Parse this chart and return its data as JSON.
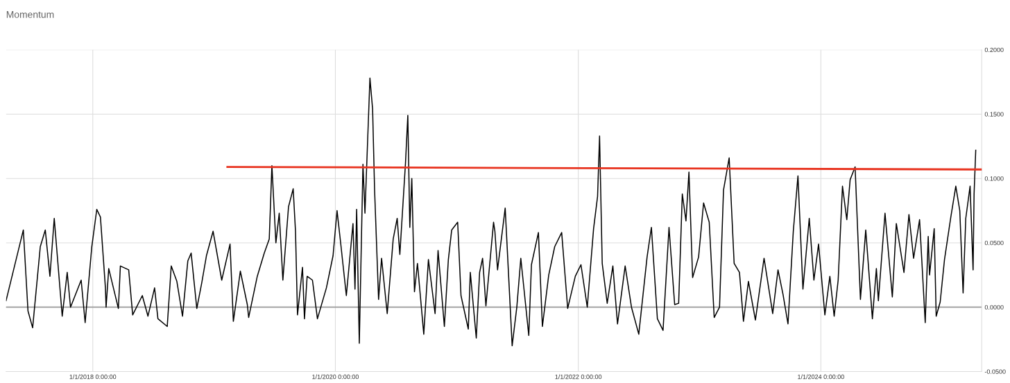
{
  "chart_data": {
    "type": "line",
    "title": "Momentum",
    "xlim": [
      "2017-04-15",
      "2025-04-29"
    ],
    "xticks": [
      {
        "value": "2018-01-01",
        "label": "1/1/2018 0:00:00"
      },
      {
        "value": "2020-01-01",
        "label": "1/1/2020 0:00:00"
      },
      {
        "value": "2022-01-01",
        "label": "1/1/2022 0:00:00"
      },
      {
        "value": "2024-01-01",
        "label": "1/1/2024 0:00:00"
      }
    ],
    "ylim": [
      -0.05,
      0.2
    ],
    "yticks": [
      {
        "value": -0.05,
        "label": "-0.0500"
      },
      {
        "value": 0,
        "label": "0.0000"
      },
      {
        "value": 0.05,
        "label": "0.0500"
      },
      {
        "value": 0.1,
        "label": "0.1000"
      },
      {
        "value": 0.15,
        "label": "0.1500"
      },
      {
        "value": 0.2,
        "label": "0.2000"
      }
    ],
    "grid": true,
    "marker": "none",
    "line_style": "solid",
    "ref_lines": [
      {
        "axis": "y",
        "value": 0,
        "color": "#999999"
      }
    ],
    "series": [
      {
        "color": "#000000",
        "x": [
          "2017-04-15",
          "2017-06-06",
          "2017-06-20",
          "2017-07-04",
          "2017-07-27",
          "2017-08-11",
          "2017-08-25",
          "2017-09-07",
          "2017-10-01",
          "2017-10-16",
          "2017-10-26",
          "2017-11-27",
          "2017-12-09",
          "2017-12-29",
          "2018-01-13",
          "2018-01-24",
          "2018-02-08",
          "2018-02-10",
          "2018-02-18",
          "2018-03-19",
          "2018-03-25",
          "2018-04-19",
          "2018-05-01",
          "2018-05-30",
          "2018-06-16",
          "2018-07-06",
          "2018-07-16",
          "2018-08-13",
          "2018-08-25",
          "2018-09-11",
          "2018-09-28",
          "2018-10-14",
          "2018-10-24",
          "2018-11-10",
          "2018-11-25",
          "2018-12-09",
          "2018-12-29",
          "2019-01-24",
          "2019-02-18",
          "2019-02-28",
          "2019-03-21",
          "2019-04-11",
          "2019-04-15",
          "2019-05-11",
          "2019-06-01",
          "2019-06-16",
          "2019-06-24",
          "2019-07-06",
          "2019-07-16",
          "2019-07-27",
          "2019-08-13",
          "2019-08-27",
          "2019-09-03",
          "2019-09-09",
          "2019-09-24",
          "2019-09-30",
          "2019-10-08",
          "2019-10-24",
          "2019-11-08",
          "2019-12-05",
          "2019-12-25",
          "2020-01-06",
          "2020-01-16",
          "2020-02-03",
          "2020-02-23",
          "2020-02-29",
          "2020-03-05",
          "2020-03-13",
          "2020-03-24",
          "2020-03-30",
          "2020-04-14",
          "2020-04-22",
          "2020-04-28",
          "2020-05-10",
          "2020-05-19",
          "2020-06-05",
          "2020-06-23",
          "2020-07-05",
          "2020-07-13",
          "2020-07-30",
          "2020-08-06",
          "2020-08-12",
          "2020-08-18",
          "2020-08-26",
          "2020-09-04",
          "2020-09-23",
          "2020-10-07",
          "2020-10-27",
          "2020-11-05",
          "2020-11-24",
          "2020-12-06",
          "2020-12-16",
          "2021-01-03",
          "2021-01-13",
          "2021-02-04",
          "2021-02-10",
          "2021-02-28",
          "2021-03-10",
          "2021-03-19",
          "2021-03-29",
          "2021-04-21",
          "2021-04-25",
          "2021-05-03",
          "2021-05-26",
          "2021-06-16",
          "2021-06-30",
          "2021-07-12",
          "2021-08-05",
          "2021-08-13",
          "2021-09-03",
          "2021-09-15",
          "2021-10-04",
          "2021-10-22",
          "2021-11-12",
          "2021-11-30",
          "2021-12-23",
          "2022-01-09",
          "2022-01-28",
          "2022-02-16",
          "2022-02-28",
          "2022-03-06",
          "2022-03-14",
          "2022-03-29",
          "2022-04-15",
          "2022-04-29",
          "2022-05-22",
          "2022-06-10",
          "2022-07-02",
          "2022-07-27",
          "2022-08-09",
          "2022-08-27",
          "2022-09-13",
          "2022-10-01",
          "2022-10-18",
          "2022-10-30",
          "2022-11-10",
          "2022-11-21",
          "2022-11-30",
          "2022-12-11",
          "2022-12-29",
          "2023-01-13",
          "2023-01-30",
          "2023-02-14",
          "2023-03-02",
          "2023-03-14",
          "2023-03-31",
          "2023-04-15",
          "2023-05-01",
          "2023-05-13",
          "2023-05-28",
          "2023-06-18",
          "2023-07-14",
          "2023-08-09",
          "2023-08-25",
          "2023-09-09",
          "2023-09-24",
          "2023-10-10",
          "2023-10-24",
          "2023-11-08",
          "2023-11-27",
          "2023-12-11",
          "2023-12-25",
          "2024-01-13",
          "2024-01-28",
          "2024-02-10",
          "2024-02-22",
          "2024-03-06",
          "2024-03-19",
          "2024-03-29",
          "2024-04-13",
          "2024-04-29",
          "2024-05-15",
          "2024-06-04",
          "2024-06-16",
          "2024-06-22",
          "2024-07-12",
          "2024-08-03",
          "2024-08-15",
          "2024-09-07",
          "2024-09-22",
          "2024-10-06",
          "2024-10-24",
          "2024-11-10",
          "2024-11-19",
          "2024-11-23",
          "2024-12-07",
          "2024-12-13",
          "2024-12-25",
          "2025-01-07",
          "2025-01-26",
          "2025-02-10",
          "2025-02-22",
          "2025-03-04",
          "2025-03-12",
          "2025-03-25",
          "2025-04-03",
          "2025-04-06",
          "2025-04-11"
        ],
        "values": [
          0.005,
          0.06,
          -0.003,
          -0.016,
          0.047,
          0.06,
          0.024,
          0.069,
          -0.007,
          0.027,
          0.0,
          0.021,
          -0.012,
          0.047,
          0.076,
          0.07,
          0.015,
          0.0,
          0.03,
          -0.001,
          0.032,
          0.029,
          -0.006,
          0.009,
          -0.007,
          0.015,
          -0.009,
          -0.015,
          0.032,
          0.02,
          -0.007,
          0.036,
          0.042,
          -0.001,
          0.019,
          0.04,
          0.059,
          0.021,
          0.049,
          -0.011,
          0.028,
          0.002,
          -0.008,
          0.024,
          0.042,
          0.053,
          0.11,
          0.05,
          0.073,
          0.021,
          0.078,
          0.092,
          0.059,
          -0.006,
          0.031,
          -0.009,
          0.024,
          0.021,
          -0.009,
          0.015,
          0.04,
          0.075,
          0.052,
          0.009,
          0.065,
          0.014,
          0.076,
          -0.028,
          0.111,
          0.073,
          0.178,
          0.154,
          0.091,
          0.006,
          0.038,
          -0.005,
          0.053,
          0.069,
          0.041,
          0.112,
          0.149,
          0.062,
          0.1,
          0.012,
          0.034,
          -0.021,
          0.037,
          -0.005,
          0.044,
          -0.015,
          0.037,
          0.06,
          0.066,
          0.009,
          -0.017,
          0.027,
          -0.024,
          0.027,
          0.038,
          0.001,
          0.066,
          0.059,
          0.029,
          0.077,
          -0.03,
          0.0,
          0.038,
          -0.022,
          0.033,
          0.058,
          -0.015,
          0.025,
          0.047,
          0.058,
          -0.001,
          0.024,
          0.033,
          0.0,
          0.061,
          0.086,
          0.133,
          0.034,
          0.003,
          0.032,
          -0.013,
          0.032,
          0.0,
          -0.021,
          0.039,
          0.062,
          -0.009,
          -0.018,
          0.062,
          0.002,
          0.003,
          0.088,
          0.067,
          0.105,
          0.023,
          0.039,
          0.081,
          0.066,
          -0.008,
          0.0,
          0.091,
          0.116,
          0.034,
          0.027,
          -0.011,
          0.02,
          -0.01,
          0.038,
          -0.005,
          0.029,
          0.01,
          -0.013,
          0.059,
          0.102,
          0.014,
          0.069,
          0.021,
          0.049,
          -0.006,
          0.024,
          -0.007,
          0.021,
          0.094,
          0.068,
          0.099,
          0.109,
          0.006,
          0.06,
          -0.009,
          0.03,
          0.005,
          0.073,
          0.008,
          0.065,
          0.027,
          0.072,
          0.038,
          0.068,
          -0.012,
          0.055,
          0.025,
          0.061,
          -0.007,
          0.004,
          0.037,
          0.07,
          0.094,
          0.075,
          0.011,
          0.069,
          0.094,
          0.029,
          0.088,
          0.122
        ]
      },
      {
        "type": "line",
        "color": "#e8321e",
        "x": [
          "2019-02-10",
          "2025-04-29"
        ],
        "values": [
          0.109,
          0.107
        ]
      }
    ]
  }
}
